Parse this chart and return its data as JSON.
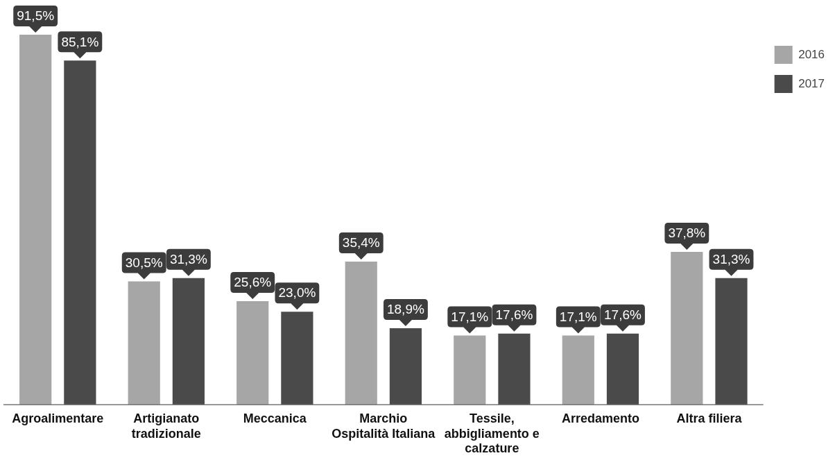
{
  "chart_data": {
    "type": "bar",
    "categories": [
      "Agroalimentare",
      "Artigianato tradizionale",
      "Meccanica",
      "Marchio Ospitalità Italiana",
      "Tessile, abbigliamento e calzature",
      "Arredamento",
      "Altra filiera"
    ],
    "series": [
      {
        "name": "2016",
        "color": "#a6a6a6",
        "values": [
          91.5,
          30.5,
          25.6,
          35.4,
          17.1,
          17.1,
          37.8
        ],
        "value_labels": [
          "91,5%",
          "30,5%",
          "25,6%",
          "35,4%",
          "17,1%",
          "17,1%",
          "37,8%"
        ]
      },
      {
        "name": "2017",
        "color": "#4a4a4a",
        "values": [
          85.1,
          31.3,
          23.0,
          18.9,
          17.6,
          17.6,
          31.3
        ],
        "value_labels": [
          "85,1%",
          "31,3%",
          "23,0%",
          "18,9%",
          "17,6%",
          "17,6%",
          "31,3%"
        ]
      }
    ],
    "legend": "top right",
    "grid": false
  }
}
